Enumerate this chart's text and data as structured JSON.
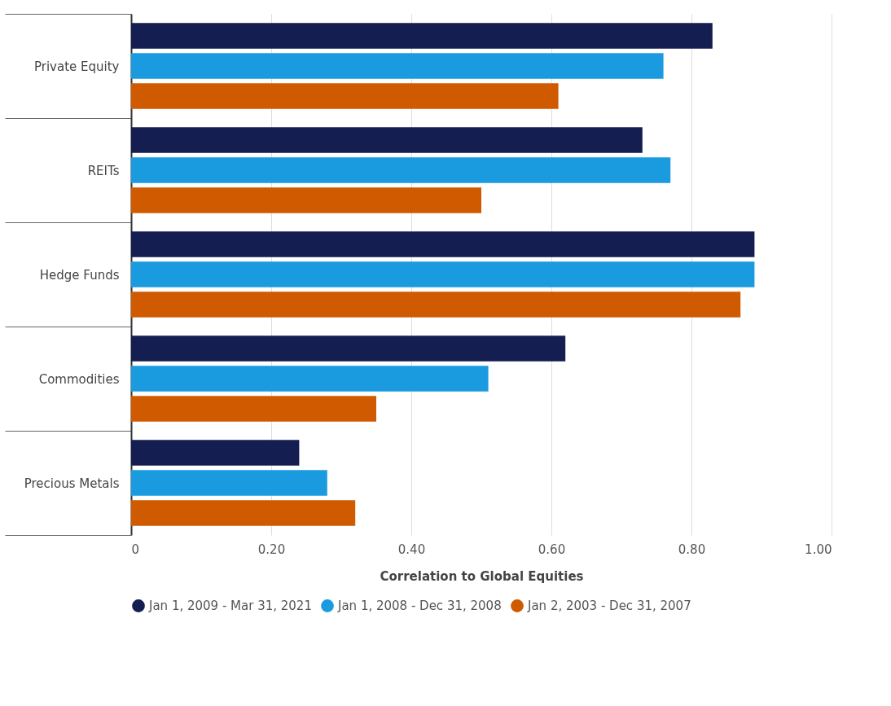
{
  "chart_data": {
    "type": "bar",
    "orientation": "horizontal",
    "xlabel": "Correlation to Global Equities",
    "categories": [
      "Private Equity",
      "REITs",
      "Hedge Funds",
      "Commodities",
      "Precious Metals"
    ],
    "series": [
      {
        "name": "Jan 1, 2009 - Mar 31, 2021",
        "color": "#141e50",
        "values": [
          0.83,
          0.73,
          0.89,
          0.62,
          0.24
        ]
      },
      {
        "name": "Jan 1, 2008 - Dec 31, 2008",
        "color": "#1a9be0",
        "values": [
          0.76,
          0.77,
          0.89,
          0.51,
          0.28
        ]
      },
      {
        "name": "Jan 2, 2003 - Dec 31, 2007",
        "color": "#d05a00",
        "values": [
          0.61,
          0.5,
          0.87,
          0.35,
          0.32
        ]
      }
    ],
    "xlim": [
      0,
      1
    ],
    "xticks": [
      0,
      {
        "value": 0.2,
        "label": "0.20"
      },
      {
        "value": 0.4,
        "label": "0.40"
      },
      {
        "value": 0.6,
        "label": "0.60"
      },
      {
        "value": 0.8,
        "label": "0.80"
      },
      {
        "value": 1,
        "label": "1.00"
      }
    ],
    "grid": "x",
    "legend": "bottom"
  }
}
